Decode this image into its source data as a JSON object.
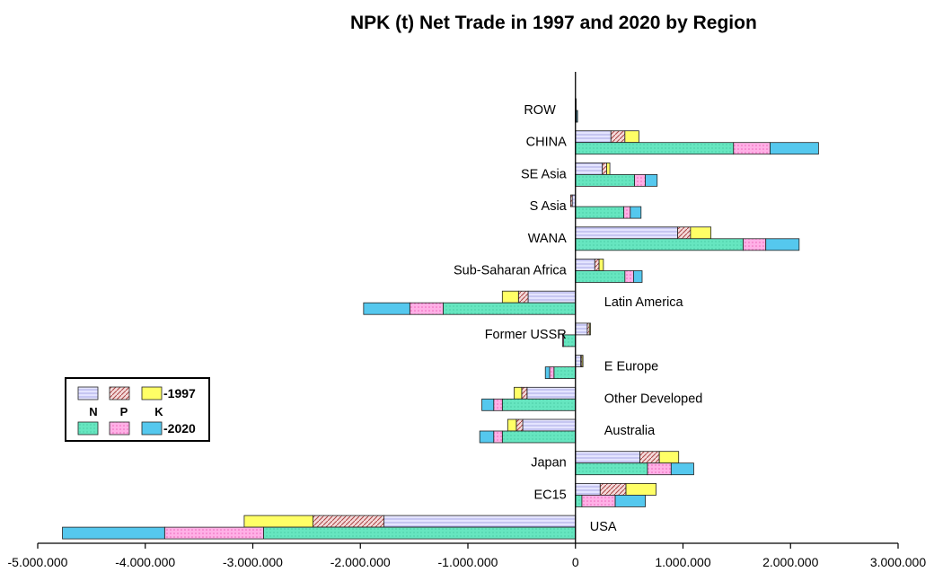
{
  "chart_data": {
    "type": "bar",
    "orientation": "horizontal",
    "stacked": true,
    "title": "NPK (t) Net Trade in 1997 and 2020 by Region",
    "xlim": [
      -5000000,
      3000000
    ],
    "x_ticks": [
      -5000000,
      -4000000,
      -3000000,
      -2000000,
      -1000000,
      0,
      1000000,
      2000000,
      3000000
    ],
    "x_tick_labels": [
      "-5.000.000",
      "-4.000.000",
      "-3.000.000",
      "-2.000.000",
      "-1.000.000",
      "0",
      "1.000.000",
      "2.000.000",
      "3.000.000"
    ],
    "grid": false,
    "legend_position": "middle-left",
    "categories": [
      "ROW",
      "CHINA",
      "SE Asia",
      "S Asia",
      "WANA",
      "Sub-Saharan Africa",
      "Latin America",
      "Former USSR",
      "E Europe",
      "Other Developed",
      "Australia",
      "Japan",
      "EC15",
      "USA"
    ],
    "series_years": [
      "1997",
      "2020"
    ],
    "nutrients": [
      "N",
      "P",
      "K"
    ],
    "legend": {
      "nutrient_labels": [
        "N",
        "P",
        "K"
      ],
      "year_labels": [
        "-1997",
        "-2020"
      ]
    },
    "colors": {
      "1997": {
        "N": "#ccccff",
        "P": "#cc8888",
        "K": "#ffff66"
      },
      "2020": {
        "N": "#66e6c0",
        "P": "#ff99dd",
        "K": "#55c8ee"
      }
    },
    "data": {
      "1997": {
        "N": [
          5000,
          330000,
          250000,
          -30000,
          950000,
          180000,
          -440000,
          110000,
          50000,
          -450000,
          -490000,
          600000,
          230000,
          -1780000
        ],
        "P": [
          0,
          130000,
          40000,
          -15000,
          120000,
          40000,
          -90000,
          20000,
          10000,
          -50000,
          -60000,
          180000,
          240000,
          -660000
        ],
        "K": [
          0,
          130000,
          30000,
          0,
          190000,
          40000,
          -150000,
          10000,
          10000,
          -70000,
          -80000,
          180000,
          280000,
          -640000
        ]
      },
      "2020": {
        "N": [
          5000,
          1470000,
          550000,
          450000,
          1560000,
          460000,
          -1230000,
          -110000,
          -200000,
          -680000,
          -680000,
          670000,
          60000,
          -2900000
        ],
        "P": [
          5000,
          340000,
          100000,
          60000,
          210000,
          80000,
          -310000,
          -10000,
          -40000,
          -80000,
          -80000,
          220000,
          310000,
          -920000
        ],
        "K": [
          10000,
          450000,
          110000,
          100000,
          310000,
          80000,
          -430000,
          0,
          -40000,
          -110000,
          -130000,
          210000,
          280000,
          -950000
        ]
      }
    }
  }
}
